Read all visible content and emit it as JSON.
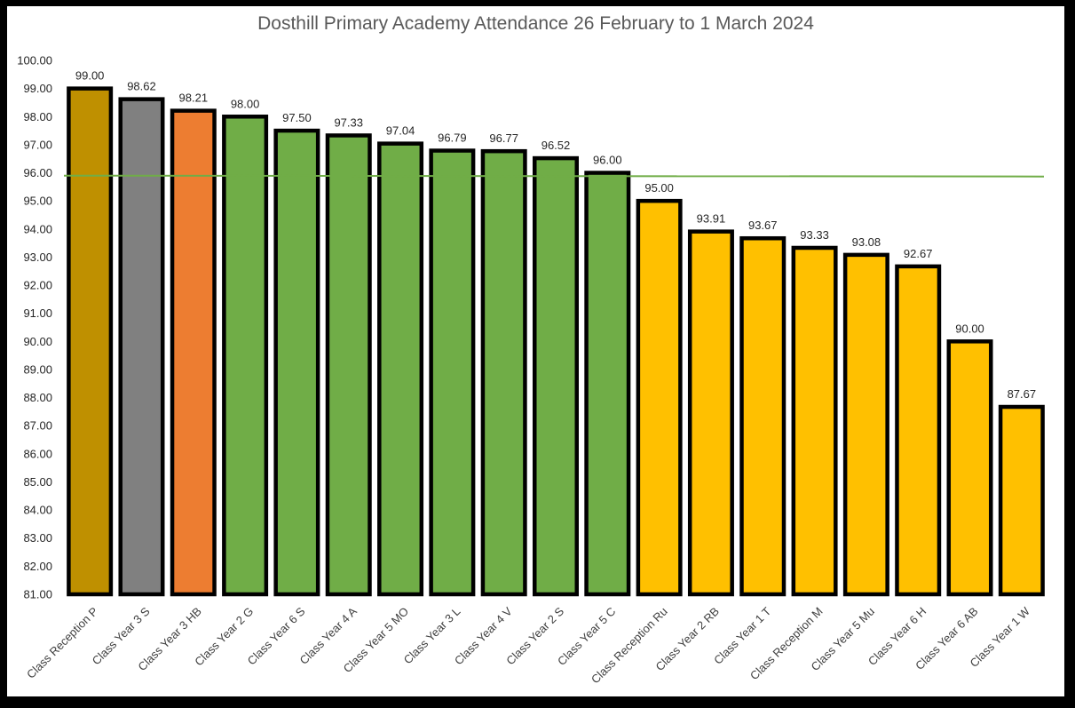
{
  "chart_data": {
    "type": "bar",
    "title": "Dosthill Primary Academy Attendance 26 February  to 1 March 2024",
    "xlabel": "",
    "ylabel": "",
    "ylim": [
      81,
      100
    ],
    "yticks": [
      "81.00",
      "82.00",
      "83.00",
      "84.00",
      "85.00",
      "86.00",
      "87.00",
      "88.00",
      "89.00",
      "90.00",
      "91.00",
      "92.00",
      "93.00",
      "94.00",
      "95.00",
      "96.00",
      "97.00",
      "98.00",
      "99.00",
      "100.00"
    ],
    "categories": [
      "Class Reception P",
      "Class Year 3 S",
      "Class Year 3 HB",
      "Class Year 2 G",
      "Class Year 6 S",
      "Class Year 4 A",
      "Class Year 5 MO",
      "Class Year 3 L",
      "Class Year 4 V",
      "Class Year 2 S",
      "Class Year 5 C",
      "Class Reception Ru",
      "Class Year 2 RB",
      "Class Year 1 T",
      "Class Reception M",
      "Class Year 5 Mu",
      "Class Year 6 H",
      "Class Year 6 AB",
      "Class Year 1 W"
    ],
    "values": [
      99.0,
      98.62,
      98.21,
      98.0,
      97.5,
      97.33,
      97.04,
      96.79,
      96.77,
      96.52,
      96.0,
      95.0,
      93.91,
      93.67,
      93.33,
      93.08,
      92.67,
      90.0,
      87.67
    ],
    "data_labels": [
      "99.00",
      "98.62",
      "98.21",
      "98.00",
      "97.50",
      "97.33",
      "97.04",
      "96.79",
      "96.77",
      "96.52",
      "96.00",
      "95.00",
      "93.91",
      "93.67",
      "93.33",
      "93.08",
      "92.67",
      "90.00",
      "87.67"
    ],
    "bar_colors": [
      "#bf9000",
      "#808080",
      "#ed7d31",
      "#70ad47",
      "#70ad47",
      "#70ad47",
      "#70ad47",
      "#70ad47",
      "#70ad47",
      "#70ad47",
      "#70ad47",
      "#ffc000",
      "#ffc000",
      "#ffc000",
      "#ffc000",
      "#ffc000",
      "#ffc000",
      "#ffc000",
      "#ffc000"
    ],
    "target_line": {
      "value": 95.9,
      "color": "#70ad47"
    },
    "grid": false,
    "legend": "none"
  }
}
